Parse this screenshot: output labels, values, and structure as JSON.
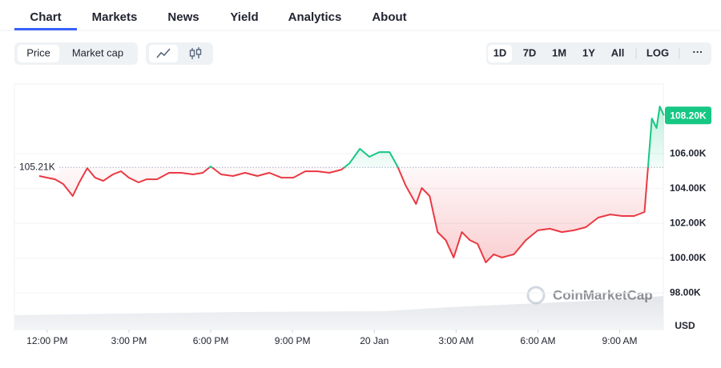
{
  "nav": {
    "tabs": [
      "Chart",
      "Markets",
      "News",
      "Yield",
      "Analytics",
      "About"
    ],
    "active": 0
  },
  "toolbar": {
    "metrics": [
      "Price",
      "Market cap"
    ],
    "active_metric": 0,
    "ranges": [
      "1D",
      "7D",
      "1M",
      "1Y",
      "All"
    ],
    "active_range": 0,
    "log": "LOG",
    "more": "···"
  },
  "chart_data": {
    "type": "line",
    "unit": "USD",
    "watermark": "CoinMarketCap",
    "grid": true,
    "colors": {
      "up": "#16c784",
      "down": "#ea3943"
    },
    "x": [
      -0.29,
      0,
      0.29,
      0.59,
      0.94,
      1.18,
      1.47,
      1.76,
      2.06,
      2.41,
      2.71,
      3,
      3.35,
      3.65,
      4.03,
      4.47,
      4.91,
      5.35,
      5.71,
      6,
      6.38,
      6.82,
      7.26,
      7.71,
      8.15,
      8.59,
      9.03,
      9.47,
      9.91,
      10.35,
      10.79,
      11.09,
      11.47,
      11.82,
      12.18,
      12.56,
      12.85,
      13.15,
      13.53,
      13.74,
      14.03,
      14.32,
      14.62,
      14.91,
      15.21,
      15.5,
      15.79,
      16.09,
      16.38,
      16.68,
      17.12,
      17.56,
      18,
      18.44,
      18.88,
      19.32,
      19.76,
      20.21,
      20.65,
      21.09,
      21.53,
      21.91,
      22.18,
      22.35,
      22.47,
      22.62
    ],
    "values": [
      104.72,
      104.62,
      104.53,
      104.26,
      103.57,
      104.35,
      105.17,
      104.62,
      104.44,
      104.81,
      104.99,
      104.62,
      104.35,
      104.53,
      104.53,
      104.9,
      104.9,
      104.81,
      104.9,
      105.27,
      104.81,
      104.72,
      104.9,
      104.72,
      104.9,
      104.62,
      104.62,
      104.99,
      104.99,
      104.9,
      105.08,
      105.45,
      106.28,
      105.82,
      106.09,
      106.09,
      105.27,
      104.17,
      103.11,
      104.03,
      103.57,
      101.5,
      101.04,
      100.04,
      101.5,
      101.04,
      100.82,
      99.76,
      100.22,
      100.04,
      100.22,
      101.04,
      101.6,
      101.69,
      101.5,
      101.6,
      101.78,
      102.33,
      102.51,
      102.42,
      102.42,
      102.65,
      108.02,
      107.47,
      108.71,
      108.2
    ],
    "xlim": [
      -1.2,
      22.6
    ],
    "ylim": [
      95.9,
      110
    ],
    "xticks": [
      {
        "value": 0,
        "label": "12:00 PM"
      },
      {
        "value": 3,
        "label": "3:00 PM"
      },
      {
        "value": 6,
        "label": "6:00 PM"
      },
      {
        "value": 9,
        "label": "9:00 PM"
      },
      {
        "value": 12,
        "label": "20 Jan"
      },
      {
        "value": 15,
        "label": "3:00 AM"
      },
      {
        "value": 18,
        "label": "6:00 AM"
      },
      {
        "value": 21,
        "label": "9:00 AM"
      }
    ],
    "yticks": [
      {
        "value": 98,
        "label": "98.00K"
      },
      {
        "value": 100,
        "label": "100.00K"
      },
      {
        "value": 102,
        "label": "102.00K"
      },
      {
        "value": 104,
        "label": "104.00K"
      },
      {
        "value": 106,
        "label": "106.00K"
      }
    ],
    "reference": {
      "value": 105.21,
      "label": "105.21K"
    },
    "last": {
      "value": 108.2,
      "label": "108.20K"
    }
  }
}
